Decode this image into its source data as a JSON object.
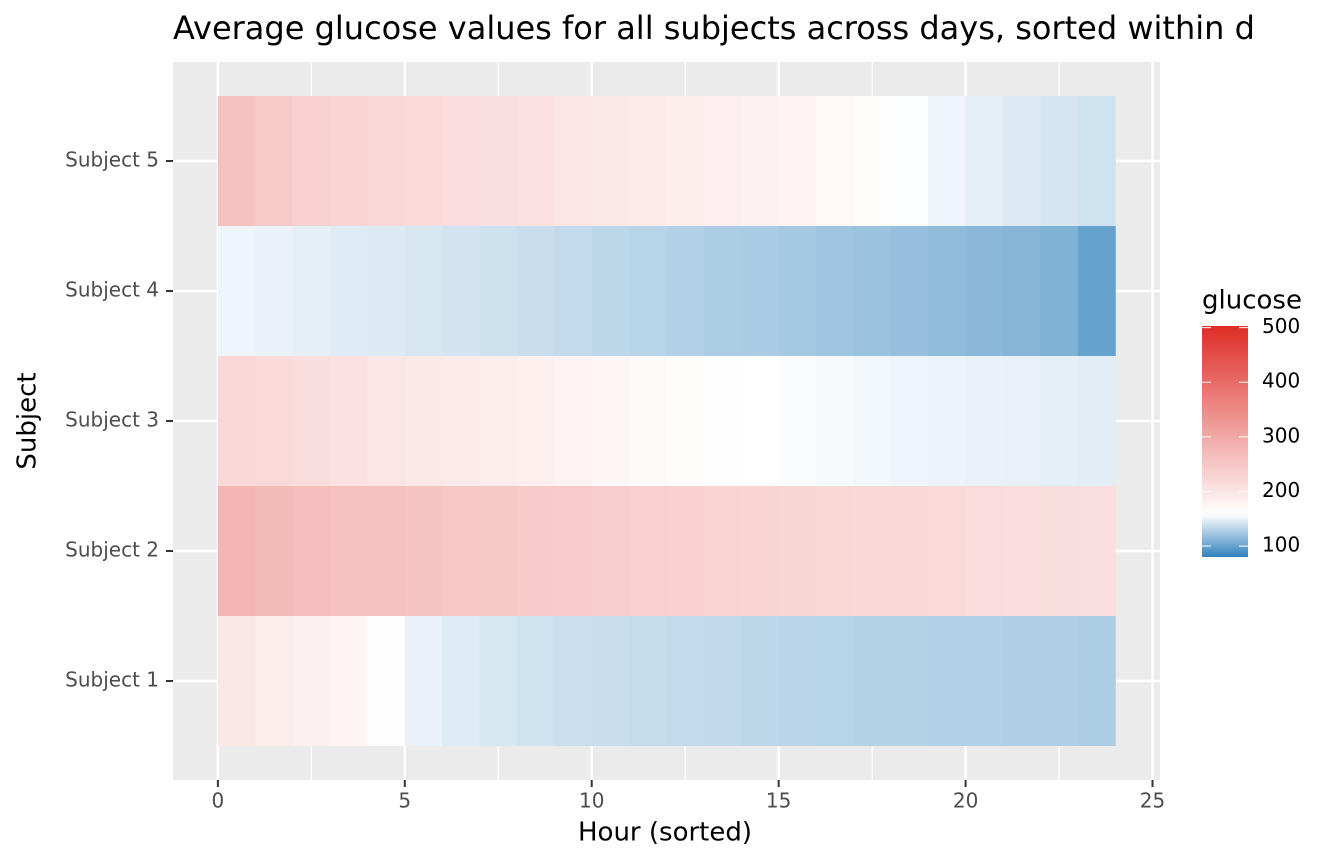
{
  "chart_data": {
    "type": "heatmap",
    "title": "Average glucose values for all subjects across days, sorted within d",
    "x_label": "Hour (sorted)",
    "y_label": "Subject",
    "x": [
      0,
      1,
      2,
      3,
      4,
      5,
      6,
      7,
      8,
      9,
      10,
      11,
      12,
      13,
      14,
      15,
      16,
      17,
      18,
      19,
      20,
      21,
      22,
      23
    ],
    "categories": [
      "Subject 1",
      "Subject 2",
      "Subject 3",
      "Subject 4",
      "Subject 5"
    ],
    "series": [
      {
        "name": "Subject 1",
        "values": [
          198,
          190,
          182,
          176,
          160,
          150,
          146,
          143,
          140,
          138,
          137,
          136,
          135,
          134,
          133,
          132,
          131,
          130,
          130,
          129,
          129,
          128,
          128,
          127
        ]
      },
      {
        "name": "Subject 2",
        "values": [
          278,
          272,
          266,
          262,
          258,
          254,
          250,
          247,
          244,
          241,
          238,
          236,
          233,
          230,
          228,
          226,
          224,
          222,
          220,
          218,
          216,
          214,
          212,
          210
        ]
      },
      {
        "name": "Subject 3",
        "values": [
          222,
          218,
          212,
          205,
          200,
          196,
          192,
          188,
          183,
          178,
          172,
          166,
          162,
          160,
          158,
          156,
          155,
          153,
          152,
          151,
          150,
          149,
          148,
          147
        ]
      },
      {
        "name": "Subject 4",
        "values": [
          152,
          150,
          148,
          146,
          145,
          143,
          141,
          139,
          137,
          135,
          133,
          131,
          129,
          127,
          126,
          124,
          122,
          120,
          118,
          116,
          114,
          112,
          110,
          100
        ]
      },
      {
        "name": "Subject 5",
        "values": [
          258,
          245,
          235,
          228,
          222,
          218,
          214,
          210,
          205,
          200,
          196,
          192,
          188,
          184,
          180,
          176,
          170,
          163,
          157,
          152,
          148,
          145,
          142,
          140
        ]
      }
    ],
    "xlim": [
      -1.2,
      25.2
    ],
    "xticks": [
      0,
      5,
      10,
      15,
      20,
      25
    ],
    "grid": true,
    "legend_title": "glucose",
    "fill_limits": [
      80,
      503
    ],
    "fill_midpoint": 158,
    "fill_colors": [
      "#3182bd",
      "#ffffff",
      "#de2d26"
    ],
    "fill_ticks": [
      100,
      200,
      300,
      400,
      500
    ]
  }
}
